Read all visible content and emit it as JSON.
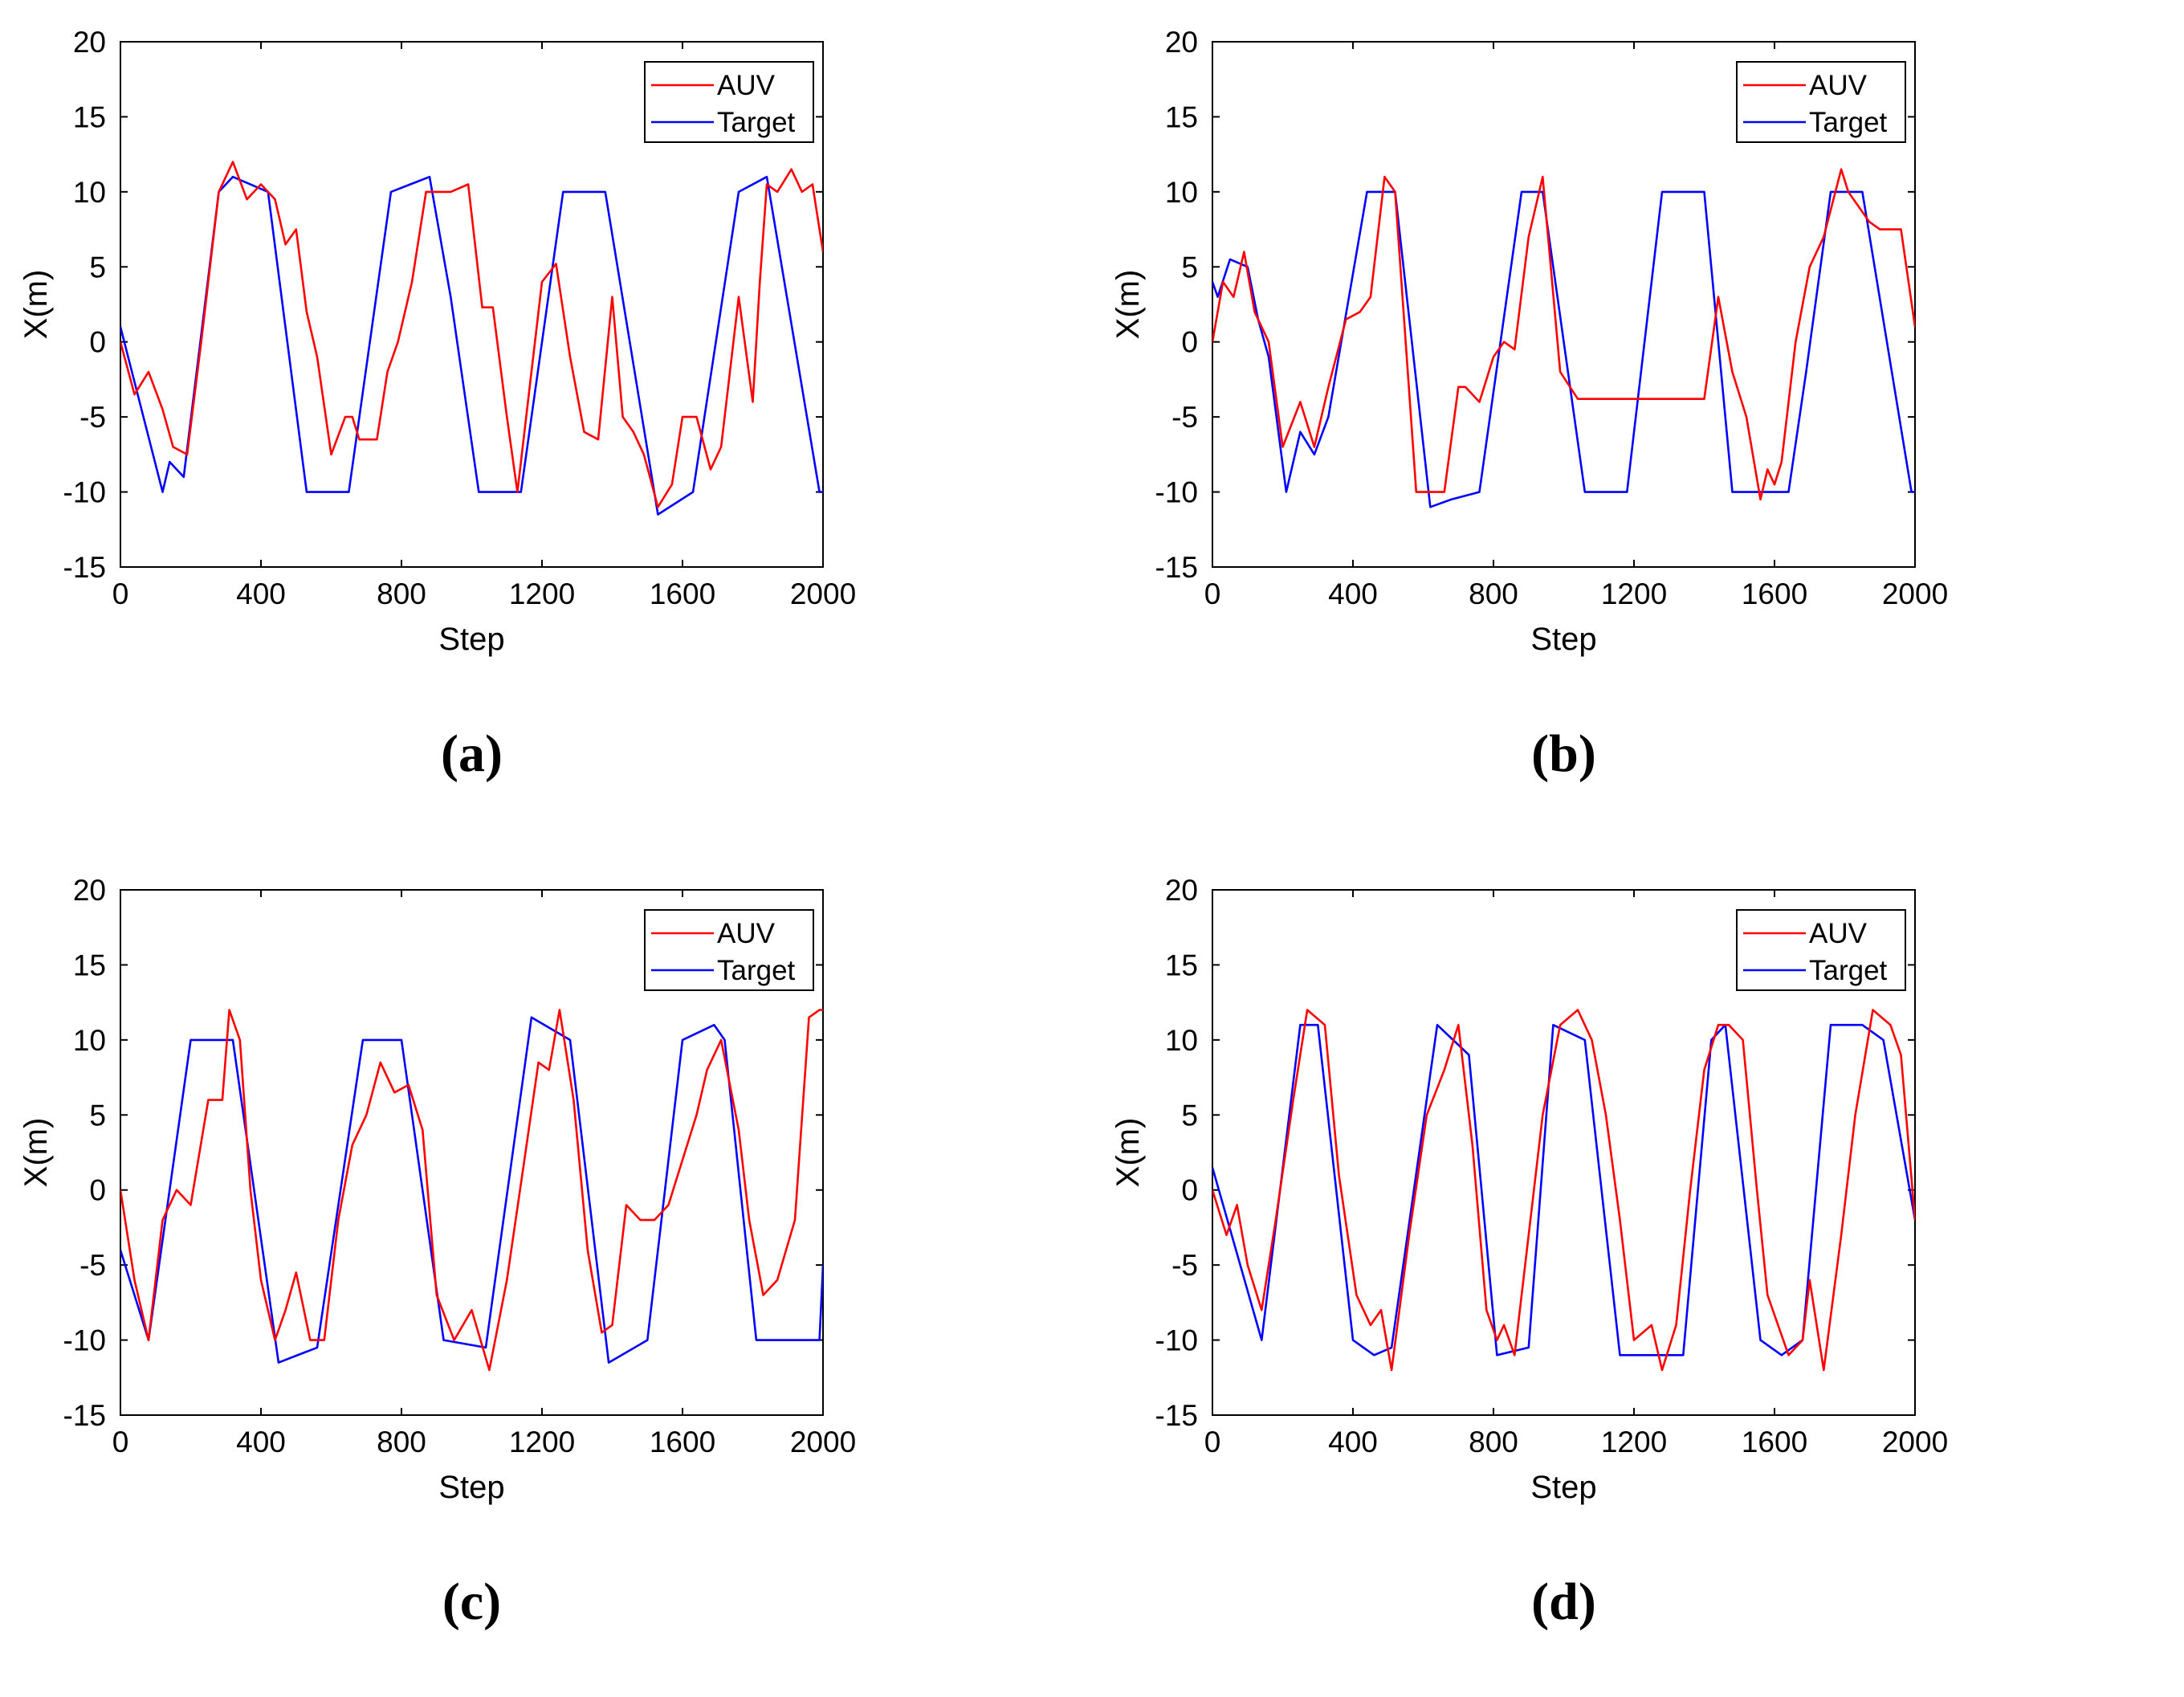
{
  "colors": {
    "auv": "#ff0000",
    "target": "#0000ff",
    "axis": "#000000"
  },
  "chart_data": [
    {
      "type": "line",
      "caption": "(a)",
      "xlabel": "Step",
      "ylabel": "X(m)",
      "xlim": [
        0,
        2000
      ],
      "ylim": [
        -15,
        20
      ],
      "xticks": [
        "0",
        "400",
        "800",
        "1200",
        "1600",
        "2000"
      ],
      "yticks": [
        "20",
        "15",
        "10",
        "5",
        "0",
        "-5",
        "-10",
        "-15"
      ],
      "legend": {
        "position": "top-right",
        "entries": [
          "AUV",
          "Target"
        ]
      },
      "series": [
        {
          "name": "Target",
          "x": [
            0,
            120,
            140,
            180,
            280,
            320,
            420,
            530,
            650,
            770,
            880,
            940,
            1020,
            1140,
            1260,
            1380,
            1530,
            1630,
            1760,
            1840,
            1990,
            2000
          ],
          "y": [
            1,
            -10,
            -8,
            -9,
            10,
            11,
            10,
            -10,
            -10,
            10,
            11,
            3,
            -10,
            -10,
            10,
            10,
            -11.5,
            -10,
            10,
            11,
            -10,
            -10
          ]
        },
        {
          "name": "AUV",
          "x": [
            0,
            40,
            80,
            120,
            150,
            190,
            230,
            280,
            320,
            360,
            400,
            440,
            470,
            500,
            530,
            560,
            600,
            640,
            660,
            680,
            700,
            730,
            760,
            790,
            830,
            870,
            900,
            940,
            990,
            1030,
            1060,
            1100,
            1130,
            1160,
            1200,
            1240,
            1280,
            1320,
            1360,
            1400,
            1430,
            1460,
            1490,
            1530,
            1570,
            1600,
            1640,
            1680,
            1710,
            1760,
            1800,
            1820,
            1840,
            1870,
            1910,
            1940,
            1970,
            2000
          ],
          "y": [
            0,
            -3.5,
            -2,
            -4.5,
            -7,
            -7.5,
            0,
            10,
            12,
            9.5,
            10.5,
            9.5,
            6.5,
            7.5,
            2,
            -1,
            -7.5,
            -5,
            -5,
            -6.5,
            -6.5,
            -6.5,
            -2,
            0,
            4,
            10,
            10,
            10,
            10.5,
            2.3,
            2.3,
            -5,
            -10,
            -4,
            4,
            5.2,
            -1,
            -6,
            -6.5,
            3,
            -5,
            -6,
            -7.5,
            -11,
            -9.5,
            -5,
            -5,
            -8.5,
            -7,
            3,
            -4,
            4,
            10.5,
            10,
            11.5,
            10,
            10.5,
            6
          ]
        }
      ]
    },
    {
      "type": "line",
      "caption": "(b)",
      "xlabel": "Step",
      "ylabel": "X(m)",
      "xlim": [
        0,
        2000
      ],
      "ylim": [
        -15,
        20
      ],
      "xticks": [
        "0",
        "400",
        "800",
        "1200",
        "1600",
        "2000"
      ],
      "yticks": [
        "20",
        "15",
        "10",
        "5",
        "0",
        "-5",
        "-10",
        "-15"
      ],
      "legend": {
        "position": "top-right",
        "entries": [
          "AUV",
          "Target"
        ]
      },
      "series": [
        {
          "name": "Target",
          "x": [
            0,
            15,
            50,
            100,
            130,
            160,
            210,
            250,
            290,
            330,
            440,
            520,
            620,
            680,
            760,
            880,
            940,
            1060,
            1180,
            1280,
            1400,
            1480,
            1560,
            1610,
            1640,
            1690,
            1760,
            1850,
            1990,
            2000
          ],
          "y": [
            4,
            3,
            5.5,
            5,
            1.5,
            -1,
            -10,
            -6,
            -7.5,
            -5,
            10,
            10,
            -11,
            -10.5,
            -10,
            10,
            10,
            -10,
            -10,
            10,
            10,
            -10,
            -10,
            -10,
            -10,
            -2,
            10,
            10,
            -10,
            -10
          ],
          "_note": ""
        },
        {
          "name": "AUV",
          "x": [
            0,
            30,
            60,
            90,
            120,
            160,
            200,
            250,
            290,
            330,
            380,
            420,
            450,
            490,
            520,
            580,
            620,
            660,
            700,
            720,
            760,
            800,
            830,
            860,
            900,
            940,
            990,
            1040,
            1400,
            1440,
            1480,
            1520,
            1560,
            1580,
            1600,
            1620,
            1660,
            1700,
            1740,
            1790,
            1810,
            1840,
            1870,
            1900,
            1960,
            2000
          ],
          "y": [
            0,
            4,
            3,
            6,
            2,
            0,
            -7,
            -4,
            -7,
            -3,
            1.5,
            2,
            3,
            11,
            10,
            -10,
            -10,
            -10,
            -3,
            -3,
            -4,
            -1,
            0,
            -0.5,
            7,
            11,
            -2,
            -3.8,
            -3.8,
            3,
            -2,
            -5,
            -10.5,
            -8.5,
            -9.5,
            -8,
            0,
            5,
            7,
            11.5,
            10,
            9,
            8,
            7.5,
            7.5,
            1
          ]
        }
      ]
    },
    {
      "type": "line",
      "caption": "(c)",
      "xlabel": "Step",
      "ylabel": "X(m)",
      "xlim": [
        0,
        2000
      ],
      "ylim": [
        -15,
        20
      ],
      "xticks": [
        "0",
        "400",
        "800",
        "1200",
        "1600",
        "2000"
      ],
      "yticks": [
        "20",
        "15",
        "10",
        "5",
        "0",
        "-5",
        "-10",
        "-15"
      ],
      "legend": {
        "position": "top-right",
        "entries": [
          "AUV",
          "Target"
        ]
      },
      "series": [
        {
          "name": "Target",
          "x": [
            0,
            80,
            200,
            320,
            450,
            560,
            690,
            800,
            920,
            1040,
            1170,
            1280,
            1390,
            1500,
            1600,
            1690,
            1720,
            1810,
            1990,
            2000
          ],
          "y": [
            -4,
            -10,
            10,
            10,
            -11.5,
            -10.5,
            10,
            10,
            -10,
            -10.5,
            11.5,
            10,
            -11.5,
            -10,
            10,
            11,
            10,
            -10,
            -10,
            -5
          ]
        },
        {
          "name": "AUV",
          "x": [
            0,
            40,
            80,
            120,
            160,
            200,
            250,
            290,
            310,
            340,
            370,
            400,
            440,
            470,
            500,
            540,
            580,
            620,
            660,
            700,
            740,
            780,
            820,
            860,
            900,
            950,
            1000,
            1050,
            1100,
            1150,
            1190,
            1220,
            1250,
            1290,
            1330,
            1370,
            1400,
            1440,
            1480,
            1520,
            1560,
            1600,
            1640,
            1670,
            1710,
            1760,
            1790,
            1830,
            1870,
            1920,
            1960,
            1990,
            2000
          ],
          "y": [
            0,
            -6,
            -10,
            -2,
            0,
            -1,
            6,
            6,
            12,
            10,
            0,
            -6,
            -10,
            -8,
            -5.5,
            -10,
            -10,
            -2,
            3,
            5,
            8.5,
            6.5,
            7,
            4,
            -7,
            -10,
            -8,
            -12,
            -6,
            2,
            8.5,
            8,
            12,
            6,
            -4,
            -9.5,
            -9,
            -1,
            -2,
            -2,
            -1,
            2,
            5,
            8,
            10,
            4,
            -2,
            -7,
            -6,
            -2,
            11.5,
            12,
            12
          ]
        }
      ]
    },
    {
      "type": "line",
      "caption": "(d)",
      "xlabel": "Step",
      "ylabel": "X(m)",
      "xlim": [
        0,
        2000
      ],
      "ylim": [
        -15,
        20
      ],
      "xticks": [
        "0",
        "400",
        "800",
        "1200",
        "1600",
        "2000"
      ],
      "yticks": [
        "20",
        "15",
        "10",
        "5",
        "0",
        "-5",
        "-10",
        "-15"
      ],
      "legend": {
        "position": "top-right",
        "entries": [
          "AUV",
          "Target"
        ]
      },
      "series": [
        {
          "name": "Target",
          "x": [
            0,
            140,
            250,
            300,
            400,
            460,
            510,
            640,
            730,
            810,
            900,
            970,
            1060,
            1160,
            1250,
            1340,
            1420,
            1460,
            1560,
            1620,
            1680,
            1760,
            1850,
            1910,
            2000
          ],
          "y": [
            1.5,
            -10,
            11,
            11,
            -10,
            -11,
            -10.5,
            11,
            9,
            -11,
            -10.5,
            11,
            10,
            -11,
            -11,
            -11,
            10,
            11,
            -10,
            -11,
            -10,
            11,
            11,
            10,
            -2
          ]
        },
        {
          "name": "AUV",
          "x": [
            0,
            40,
            70,
            100,
            140,
            180,
            230,
            270,
            320,
            360,
            410,
            450,
            480,
            510,
            560,
            610,
            660,
            700,
            740,
            780,
            810,
            830,
            860,
            900,
            940,
            990,
            1040,
            1080,
            1120,
            1160,
            1200,
            1250,
            1280,
            1320,
            1360,
            1400,
            1440,
            1470,
            1510,
            1550,
            1580,
            1640,
            1680,
            1700,
            1740,
            1790,
            1830,
            1880,
            1930,
            1960,
            2000
          ],
          "y": [
            0,
            -3,
            -1,
            -5,
            -8,
            -2,
            6,
            12,
            11,
            1,
            -7,
            -9,
            -8,
            -12,
            -3,
            5,
            8,
            11,
            3,
            -8,
            -10,
            -9,
            -11,
            -3,
            5,
            11,
            12,
            10,
            5,
            -2,
            -10,
            -9,
            -12,
            -9,
            0,
            8,
            11,
            11,
            10,
            0,
            -7,
            -11,
            -10,
            -6,
            -12,
            -3,
            5,
            12,
            11,
            9,
            -2
          ]
        }
      ]
    }
  ]
}
